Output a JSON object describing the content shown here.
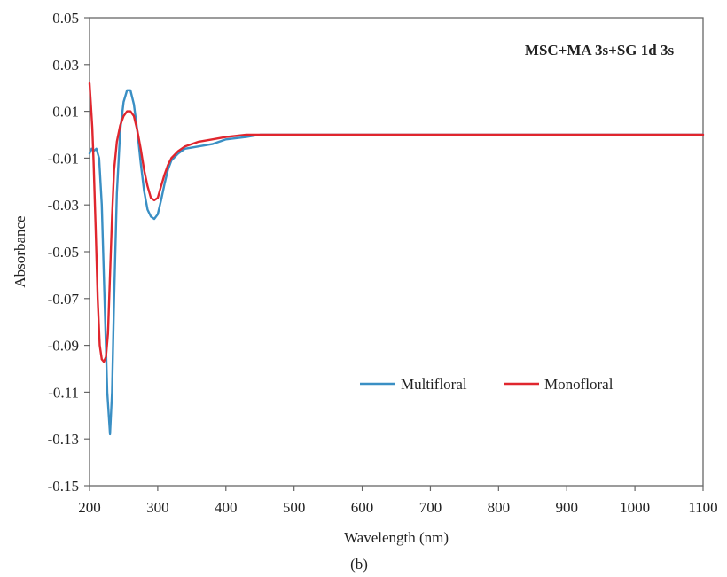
{
  "chart_data": {
    "type": "line",
    "title": "",
    "annotation": "MSC+MA 3s+SG 1d 3s",
    "xlabel": "Wavelength (nm)",
    "ylabel": "Absorbance",
    "xlim": [
      200,
      1100
    ],
    "ylim": [
      -0.15,
      0.05
    ],
    "x_ticks": [
      200,
      300,
      400,
      500,
      600,
      700,
      800,
      900,
      1000,
      1100
    ],
    "x_tick_labels": [
      "200",
      "300",
      "400",
      "500",
      "600",
      "700",
      "800",
      "900",
      "1000",
      "1100"
    ],
    "y_ticks": [
      0.05,
      0.03,
      0.01,
      -0.01,
      -0.03,
      -0.05,
      -0.07,
      -0.09,
      -0.11,
      -0.13,
      -0.15
    ],
    "y_tick_labels": [
      "0.05",
      "0.03",
      "0.01",
      "-0.01",
      "-0.03",
      "-0.05",
      "-0.07",
      "-0.09",
      "-0.11",
      "-0.13",
      "-0.15"
    ],
    "grid": false,
    "legend_position": "lower-right",
    "panel_label": "(b)",
    "series": [
      {
        "name": "Multifloral",
        "color": "#3a8fc4",
        "x": [
          200,
          203,
          206,
          210,
          214,
          218,
          222,
          226,
          230,
          233,
          236,
          240,
          245,
          250,
          255,
          260,
          265,
          270,
          275,
          280,
          285,
          290,
          295,
          300,
          305,
          310,
          315,
          320,
          330,
          340,
          360,
          380,
          400,
          430,
          450,
          500,
          600,
          700,
          800,
          900,
          1000,
          1100
        ],
        "y": [
          -0.008,
          -0.006,
          -0.007,
          -0.006,
          -0.01,
          -0.03,
          -0.07,
          -0.11,
          -0.128,
          -0.11,
          -0.07,
          -0.025,
          0.002,
          0.014,
          0.019,
          0.019,
          0.013,
          0.002,
          -0.012,
          -0.024,
          -0.032,
          -0.035,
          -0.036,
          -0.034,
          -0.028,
          -0.021,
          -0.015,
          -0.011,
          -0.008,
          -0.006,
          -0.005,
          -0.004,
          -0.002,
          -0.001,
          0.0,
          0.0,
          0.0,
          0.0,
          0.0,
          0.0,
          0.0,
          0.0
        ]
      },
      {
        "name": "Monofloral",
        "color": "#e0262e",
        "x": [
          200,
          202,
          204,
          206,
          209,
          212,
          215,
          218,
          221,
          224,
          227,
          230,
          233,
          236,
          240,
          245,
          250,
          255,
          260,
          265,
          270,
          275,
          280,
          285,
          290,
          295,
          300,
          305,
          310,
          315,
          320,
          330,
          340,
          360,
          380,
          400,
          430,
          450,
          500,
          600,
          700,
          800,
          850,
          900,
          950,
          1000,
          1050,
          1100
        ],
        "y": [
          0.022,
          0.013,
          0.003,
          -0.012,
          -0.04,
          -0.07,
          -0.09,
          -0.096,
          -0.097,
          -0.095,
          -0.085,
          -0.06,
          -0.035,
          -0.015,
          -0.003,
          0.004,
          0.008,
          0.01,
          0.01,
          0.008,
          0.002,
          -0.006,
          -0.015,
          -0.022,
          -0.027,
          -0.028,
          -0.027,
          -0.022,
          -0.017,
          -0.013,
          -0.01,
          -0.007,
          -0.005,
          -0.003,
          -0.002,
          -0.001,
          0.0,
          0.0,
          0.0,
          0.0,
          0.0,
          0.0,
          0.0,
          0.0,
          0.0,
          0.0,
          0.0,
          0.0
        ]
      }
    ]
  }
}
